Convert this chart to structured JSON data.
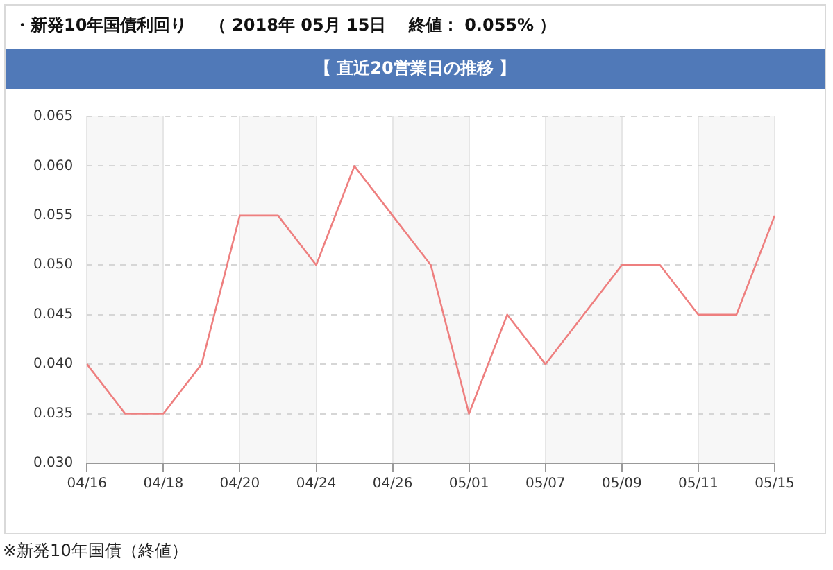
{
  "chart_data": {
    "type": "line",
    "title": "・新発10年国債利回り　 （ 2018年 05月 15日　 終値： 0.055% ）",
    "subtitle": "【 直近20営業日の推移 】",
    "annotations": [
      "※新発10年国債（終値）"
    ],
    "categories": [
      "04/16",
      null,
      "04/18",
      null,
      "04/20",
      null,
      "04/24",
      null,
      "04/26",
      null,
      "05/01",
      null,
      "05/07",
      null,
      "05/09",
      null,
      "05/11",
      null,
      "05/15"
    ],
    "series": [
      {
        "color": "#ee7f7f",
        "values": [
          0.04,
          0.035,
          0.035,
          0.04,
          0.055,
          0.055,
          0.05,
          0.06,
          0.055,
          0.05,
          0.035,
          0.045,
          0.04,
          0.045,
          0.05,
          0.05,
          0.045,
          0.045,
          0.055
        ]
      }
    ],
    "ylim": [
      0.03,
      0.065
    ],
    "yticks": [
      {
        "value": 0.03,
        "label": "0.030"
      },
      {
        "value": 0.035,
        "label": "0.035"
      },
      {
        "value": 0.04,
        "label": "0.040"
      },
      {
        "value": 0.045,
        "label": "0.045"
      },
      {
        "value": 0.05,
        "label": "0.050"
      },
      {
        "value": 0.055,
        "label": "0.055"
      },
      {
        "value": 0.06,
        "label": "0.060"
      },
      {
        "value": 0.065,
        "label": "0.065"
      }
    ],
    "bands": [
      {
        "axis": "x",
        "from": "04/16",
        "to": "04/18",
        "color": "#f7f7f7"
      },
      {
        "axis": "x",
        "from": "04/20",
        "to": "04/24",
        "color": "#f7f7f7"
      },
      {
        "axis": "x",
        "from": "04/26",
        "to": "05/01",
        "color": "#f7f7f7"
      },
      {
        "axis": "x",
        "from": "05/07",
        "to": "05/09",
        "color": "#f7f7f7"
      },
      {
        "axis": "x",
        "from": "05/11",
        "to": "05/15",
        "color": "#f7f7f7"
      }
    ],
    "grid": true,
    "marker": "none",
    "line_style": "solid"
  }
}
